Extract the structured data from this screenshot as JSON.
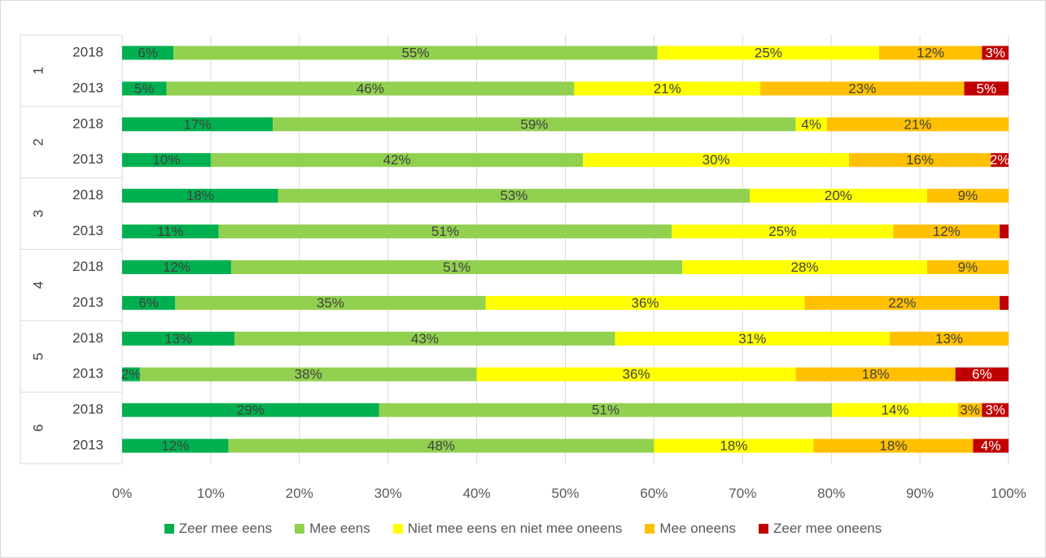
{
  "chart_data": {
    "type": "bar",
    "orientation": "horizontal",
    "stacked": "100%",
    "groups": [
      "1",
      "2",
      "3",
      "4",
      "5",
      "6"
    ],
    "categories": [
      "2018",
      "2013",
      "2018",
      "2013",
      "2018",
      "2013",
      "2018",
      "2013",
      "2018",
      "2013",
      "2018",
      "2013"
    ],
    "series": [
      {
        "name": "Zeer mee eens",
        "color": "#00b050",
        "values": [
          5.8,
          5.0,
          17.0,
          10.0,
          17.6,
          10.9,
          12.3,
          6.0,
          12.7,
          2.0,
          29.0,
          12.0
        ],
        "labels": [
          "6%",
          "5%",
          "17%",
          "10%",
          "18%",
          "11%",
          "12%",
          "6%",
          "13%",
          "2%",
          "29%",
          "12%"
        ]
      },
      {
        "name": "Mee eens",
        "color": "#92d050",
        "values": [
          54.6,
          46.0,
          59.0,
          42.0,
          53.2,
          51.1,
          50.9,
          35.0,
          42.9,
          38.0,
          51.1,
          48.0
        ],
        "labels": [
          "55%",
          "46%",
          "59%",
          "42%",
          "53%",
          "51%",
          "51%",
          "35%",
          "43%",
          "38%",
          "51%",
          "48%"
        ]
      },
      {
        "name": "Niet mee eens en niet mee oneens",
        "color": "#ffff00",
        "values": [
          25.0,
          21.0,
          3.5,
          30.0,
          20.0,
          25.0,
          27.6,
          36.0,
          31.0,
          36.0,
          14.2,
          18.0
        ],
        "labels": [
          "25%",
          "21%",
          "4%",
          "30%",
          "20%",
          "25%",
          "28%",
          "36%",
          "31%",
          "36%",
          "14%",
          "18%"
        ]
      },
      {
        "name": "Mee oneens",
        "color": "#ffc000",
        "values": [
          11.6,
          23.0,
          20.5,
          16.0,
          9.2,
          12.0,
          9.2,
          22.0,
          13.4,
          18.0,
          2.7,
          18.0
        ],
        "labels": [
          "12%",
          "23%",
          "21%",
          "16%",
          "9%",
          "12%",
          "9%",
          "22%",
          "13%",
          "18%",
          "3%",
          "18%"
        ]
      },
      {
        "name": "Zeer mee oneens",
        "color": "#c00000",
        "values": [
          3.0,
          5.0,
          0,
          2.0,
          0,
          1.0,
          0,
          1.0,
          0,
          6.0,
          3.0,
          4.0
        ],
        "labels": [
          "3%",
          "5%",
          "",
          "2%",
          "",
          "",
          "",
          "",
          "",
          "6%",
          "3%",
          "4%"
        ]
      }
    ],
    "x_ticks": [
      "0%",
      "10%",
      "20%",
      "30%",
      "40%",
      "50%",
      "60%",
      "70%",
      "80%",
      "90%",
      "100%"
    ],
    "xlim": [
      0,
      100
    ],
    "grid": true,
    "legend_position": "bottom"
  }
}
